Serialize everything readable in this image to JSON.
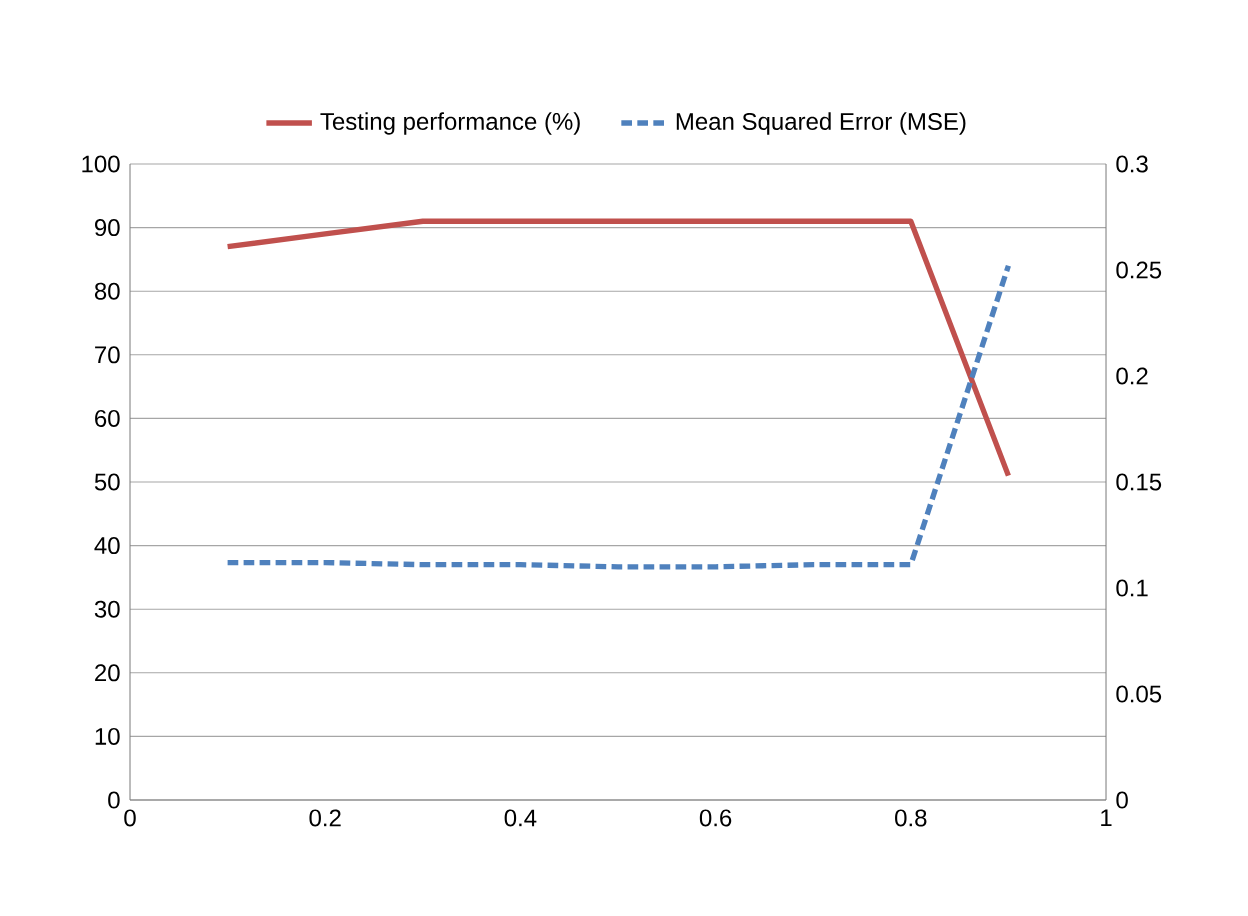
{
  "chart_data": {
    "type": "line",
    "x": [
      0.1,
      0.2,
      0.3,
      0.4,
      0.5,
      0.6,
      0.7,
      0.8,
      0.9
    ],
    "series": [
      {
        "name": "Testing performance (%)",
        "color": "#c0504d",
        "line_style": "solid",
        "values": [
          87,
          89,
          91,
          91,
          91,
          91,
          91,
          91,
          51
        ]
      },
      {
        "name": "Mean Squared Error (MSE)",
        "color": "#4f81bd",
        "line_style": "dashed",
        "axis": "y2",
        "values": [
          0.112,
          0.112,
          0.111,
          0.111,
          0.11,
          0.11,
          0.111,
          0.111,
          0.252
        ]
      }
    ],
    "xlim": [
      0,
      1
    ],
    "xticks": [
      0,
      0.2,
      0.4,
      0.6,
      0.8,
      1
    ],
    "ylim": [
      0,
      100
    ],
    "yticks": [
      0,
      10,
      20,
      30,
      40,
      50,
      60,
      70,
      80,
      90,
      100
    ],
    "y2lim": [
      0,
      0.3
    ],
    "y2ticks": [
      0,
      0.05,
      0.1,
      0.15,
      0.2,
      0.25,
      0.3
    ],
    "grid": "y",
    "legend": "top",
    "marker": "none"
  }
}
